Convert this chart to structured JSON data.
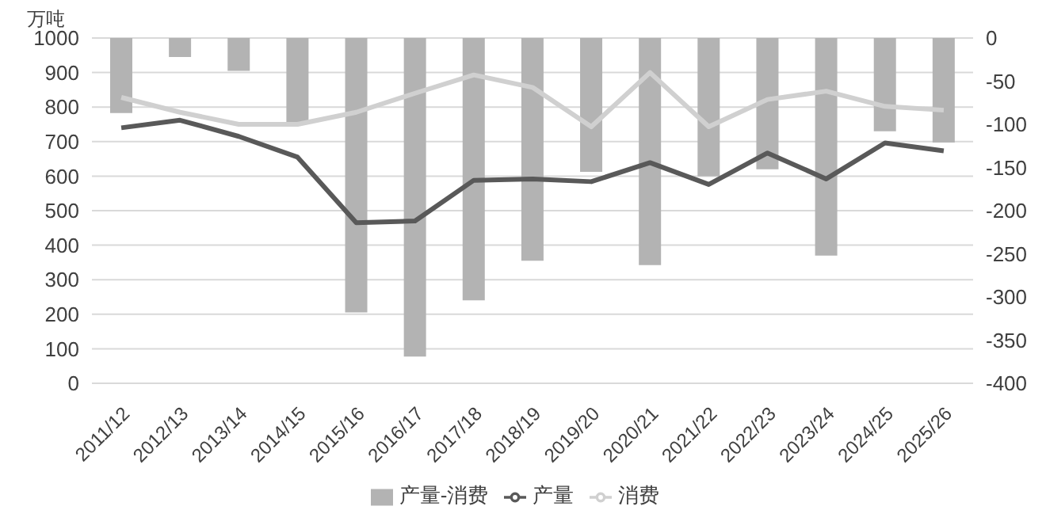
{
  "chart_data": {
    "type": "bar",
    "ylabel": "万吨",
    "categories": [
      "2011/12",
      "2012/13",
      "2013/14",
      "2014/15",
      "2015/16",
      "2016/17",
      "2017/18",
      "2018/19",
      "2019/20",
      "2020/21",
      "2021/22",
      "2022/23",
      "2023/24",
      "2024/25",
      "2025/26"
    ],
    "series": [
      {
        "name": "产量-消费",
        "axis": "y2",
        "color": "#b3b3b3",
        "values": [
          -87,
          -22,
          -38,
          -100,
          -318,
          -369,
          -304,
          -258,
          -155,
          -263,
          -160,
          -152,
          -252,
          -108,
          -121
        ]
      },
      {
        "name": "产量",
        "type": "line",
        "color": "#595959",
        "values": [
          740,
          762,
          715,
          655,
          465,
          470,
          588,
          592,
          584,
          639,
          576,
          667,
          592,
          696,
          673
        ]
      },
      {
        "name": "消费",
        "type": "line",
        "color": "#d0d0d0",
        "values": [
          828,
          785,
          750,
          750,
          785,
          840,
          893,
          857,
          743,
          900,
          743,
          822,
          846,
          802,
          791
        ]
      }
    ],
    "ylim": [
      0,
      1000
    ],
    "yticks": [
      0,
      100,
      200,
      300,
      400,
      500,
      600,
      700,
      800,
      900,
      1000
    ],
    "y2lim": [
      -400,
      0
    ],
    "y2ticks": [
      -400,
      -350,
      -300,
      -250,
      -200,
      -150,
      -100,
      -50,
      0
    ],
    "grid": "y",
    "legend": "bottom",
    "marker": "none"
  }
}
